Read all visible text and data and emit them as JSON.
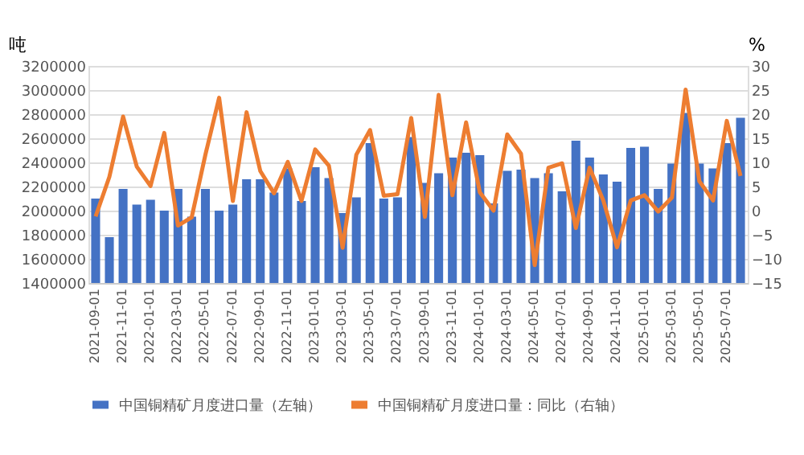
{
  "chart_data": {
    "type": "bar",
    "ylabel": "吨",
    "y2label": "%",
    "categories": [
      "2021-09-01",
      null,
      "2021-11-01",
      null,
      "2022-01-01",
      null,
      "2022-03-01",
      null,
      "2022-05-01",
      null,
      "2022-07-01",
      null,
      "2022-09-01",
      null,
      "2022-11-01",
      null,
      "2023-01-01",
      null,
      "2023-03-01",
      null,
      "2023-05-01",
      null,
      "2023-07-01",
      null,
      "2023-09-01",
      null,
      "2023-11-01",
      null,
      "2024-01-01",
      null,
      "2024-03-01",
      null,
      "2024-05-01",
      null,
      "2024-07-01",
      null,
      "2024-09-01",
      null,
      "2024-11-01",
      null,
      "2025-01-01",
      null,
      "2025-03-01",
      null,
      "2025-05-01",
      null,
      "2025-07-01",
      null
    ],
    "series": [
      {
        "name": "中国铜精矿月度进口量（左轴）",
        "color": "#4472c4",
        "values": [
          2100000,
          1780000,
          2180000,
          2050000,
          2090000,
          2000000,
          2180000,
          1950000,
          2180000,
          2000000,
          2050000,
          2260000,
          2260000,
          2150000,
          2350000,
          2080000,
          2360000,
          2270000,
          1980000,
          2110000,
          2560000,
          2100000,
          2110000,
          2610000,
          2230000,
          2310000,
          2440000,
          2480000,
          2460000,
          2060000,
          2330000,
          2340000,
          2270000,
          2310000,
          2160000,
          2580000,
          2440000,
          2300000,
          2240000,
          2520000,
          2530000,
          2180000,
          2390000,
          2810000,
          2390000,
          2350000,
          2560000,
          2770000
        ]
      },
      {
        "name": "中国铜精矿月度进口量：同比（右轴）",
        "type": "line",
        "axis": "y2",
        "color": "#ed7d31",
        "values": [
          -1.2,
          7.0,
          19.5,
          9.1,
          5.1,
          16.1,
          -3.1,
          -1.4,
          11.6,
          23.4,
          2.0,
          20.4,
          8.2,
          3.6,
          10.1,
          2.0,
          12.7,
          9.3,
          -7.7,
          11.6,
          16.7,
          3.1,
          3.4,
          19.2,
          -1.3,
          24.0,
          3.2,
          18.3,
          3.8,
          0.0,
          15.8,
          11.8,
          -11.3,
          8.9,
          9.8,
          -3.6,
          8.9,
          2.1,
          -7.6,
          2.1,
          3.2,
          -0.2,
          2.7,
          25.1,
          6.1,
          2.1,
          18.6,
          7.2
        ]
      }
    ],
    "ylim": [
      1400000,
      3200000
    ],
    "yticks": [
      1400000,
      1600000,
      1800000,
      2000000,
      2200000,
      2400000,
      2600000,
      2800000,
      3000000,
      3200000
    ],
    "y2lim": [
      -15,
      30
    ],
    "y2ticks": [
      -15,
      -10,
      -5,
      0,
      5,
      10,
      15,
      20,
      25,
      30
    ],
    "grid": "y",
    "legend": "bottom",
    "marker": "none",
    "line_style": "solid"
  }
}
